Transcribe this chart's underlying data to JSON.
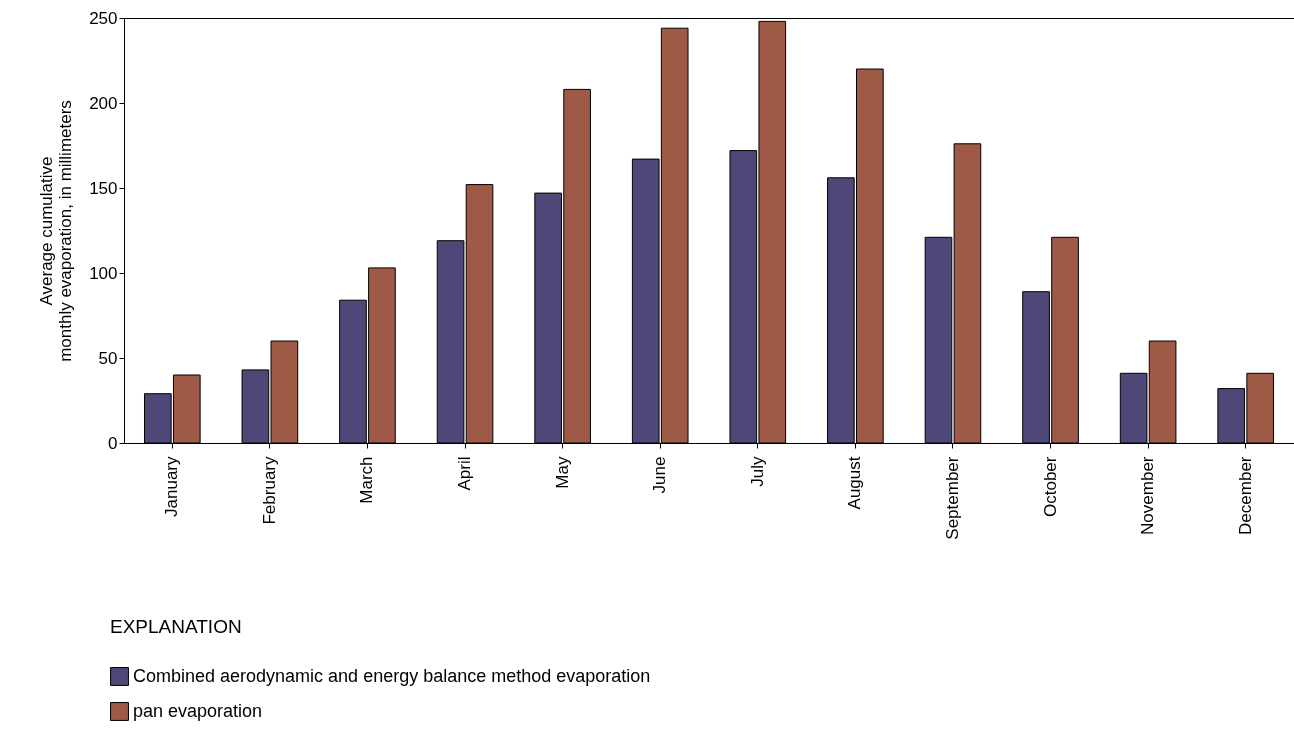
{
  "chart_data": {
    "type": "bar",
    "ylabel": "Average cumulative\nmonthly evaporation, in millimeters",
    "legend_title": "EXPLANATION",
    "categories": [
      "January",
      "February",
      "March",
      "April",
      "May",
      "June",
      "July",
      "August",
      "September",
      "October",
      "November",
      "December"
    ],
    "series": [
      {
        "name": "Combined aerodynamic and energy balance method evaporation",
        "color": "#4e4878",
        "values": [
          29,
          43,
          84,
          119,
          147,
          167,
          172,
          156,
          121,
          89,
          41,
          32
        ]
      },
      {
        "name": "pan evaporation",
        "color": "#9e5a47",
        "values": [
          40,
          60,
          103,
          152,
          208,
          244,
          248,
          220,
          176,
          121,
          60,
          41
        ]
      }
    ],
    "ylim": [
      0,
      250
    ],
    "yticks": [
      0,
      50,
      100,
      150,
      200,
      250
    ],
    "grid": false,
    "legend": "bottom left"
  }
}
